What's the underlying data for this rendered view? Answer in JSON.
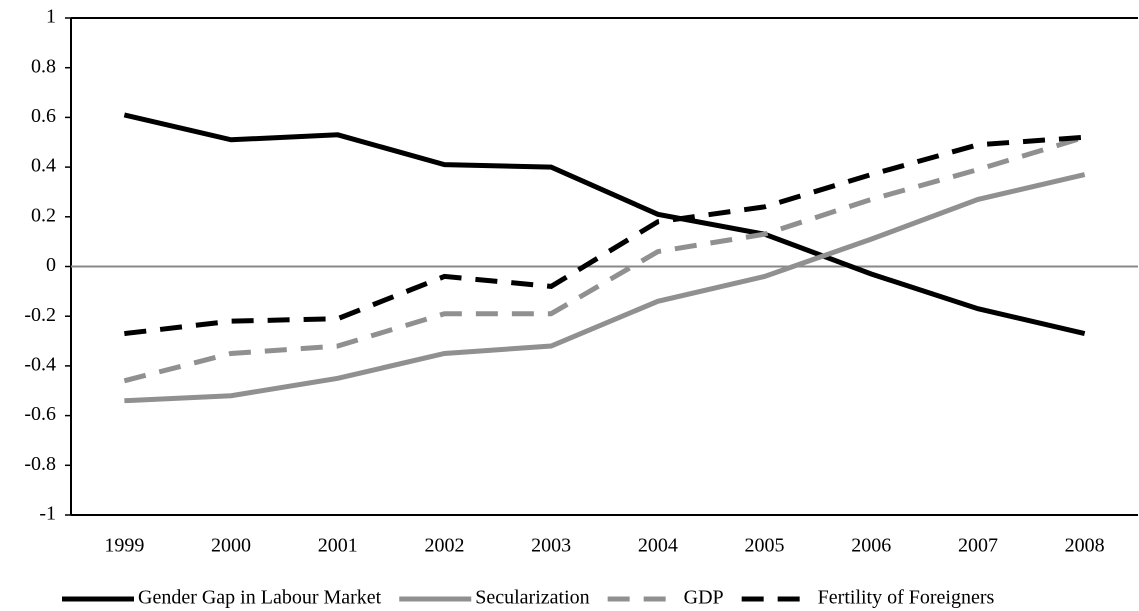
{
  "chart_data": {
    "type": "line",
    "categories": [
      "1999",
      "2000",
      "2001",
      "2002",
      "2003",
      "2004",
      "2005",
      "2006",
      "2007",
      "2008"
    ],
    "series": [
      {
        "name": "Gender Gap in Labour Market",
        "color": "#000000",
        "dashed": false,
        "values": [
          0.61,
          0.51,
          0.53,
          0.41,
          0.4,
          0.21,
          0.13,
          -0.03,
          -0.17,
          -0.27
        ]
      },
      {
        "name": "Secularization",
        "color": "#909090",
        "dashed": false,
        "values": [
          -0.54,
          -0.52,
          -0.45,
          -0.35,
          -0.32,
          -0.14,
          -0.04,
          0.11,
          0.27,
          0.37
        ]
      },
      {
        "name": "GDP",
        "color": "#909090",
        "dashed": true,
        "values": [
          -0.46,
          -0.35,
          -0.32,
          -0.19,
          -0.19,
          0.06,
          0.13,
          0.27,
          0.39,
          0.52
        ]
      },
      {
        "name": "Fertility of Foreigners",
        "color": "#000000",
        "dashed": true,
        "values": [
          -0.27,
          -0.22,
          -0.21,
          -0.04,
          -0.08,
          0.18,
          0.24,
          0.37,
          0.49,
          0.52
        ]
      }
    ],
    "ylim": [
      -1,
      1
    ],
    "yticks": [
      -1,
      -0.8,
      -0.6,
      -0.4,
      -0.2,
      0,
      0.2,
      0.4,
      0.6,
      0.8,
      1
    ],
    "legend": "bottom"
  }
}
